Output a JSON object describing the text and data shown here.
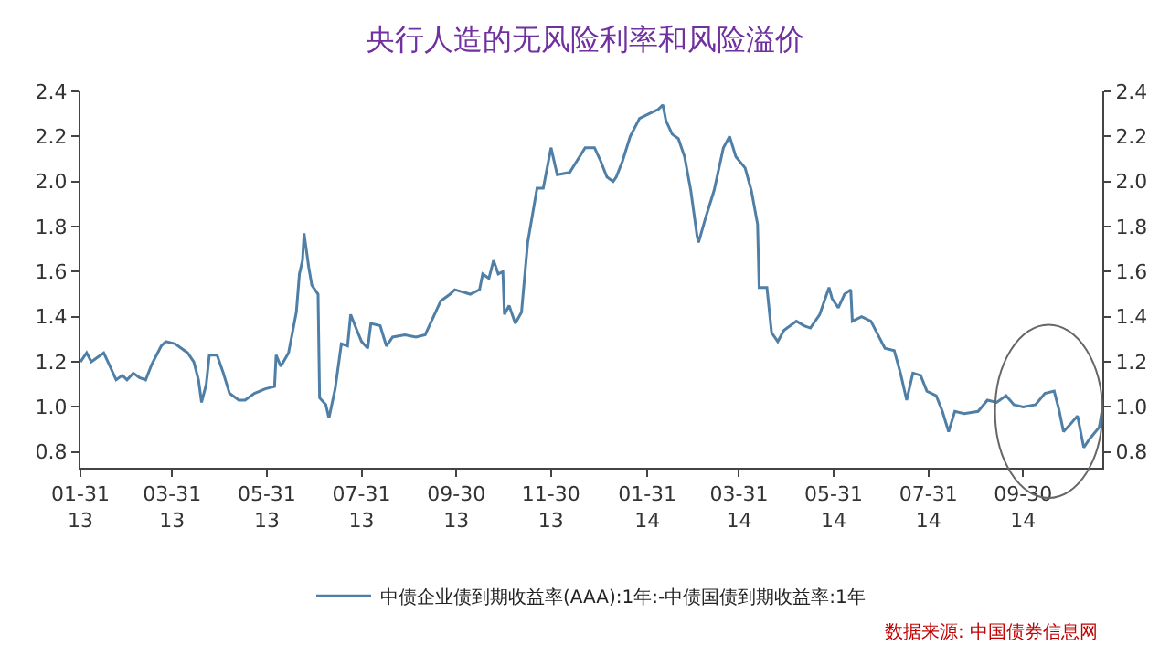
{
  "chart_data": {
    "type": "line",
    "title": "央行人造的无风险利率和风险溢价",
    "x": [
      "2013-01-31",
      "2013-02-04",
      "2013-02-07",
      "2013-02-15",
      "2013-02-19",
      "2013-02-23",
      "2013-02-27",
      "2013-03-02",
      "2013-03-06",
      "2013-03-10",
      "2013-03-14",
      "2013-03-18",
      "2013-03-24",
      "2013-03-27",
      "2013-04-02",
      "2013-04-10",
      "2013-04-14",
      "2013-04-17",
      "2013-04-19",
      "2013-04-22",
      "2013-04-24",
      "2013-04-29",
      "2013-05-03",
      "2013-05-07",
      "2013-05-13",
      "2013-05-17",
      "2013-05-23",
      "2013-05-30",
      "2013-06-05",
      "2013-06-06",
      "2013-06-09",
      "2013-06-14",
      "2013-06-19",
      "2013-06-21",
      "2013-06-23",
      "2013-06-24",
      "2013-06-27",
      "2013-06-29",
      "2013-07-03",
      "2013-07-04",
      "2013-07-08",
      "2013-07-10",
      "2013-07-14",
      "2013-07-18",
      "2013-07-22",
      "2013-07-24",
      "2013-07-28",
      "2013-07-31",
      "2013-08-04",
      "2013-08-06",
      "2013-08-12",
      "2013-08-16",
      "2013-08-20",
      "2013-08-28",
      "2013-09-04",
      "2013-09-10",
      "2013-09-16",
      "2013-09-20",
      "2013-09-26",
      "2013-09-29",
      "2013-10-09",
      "2013-10-15",
      "2013-10-17",
      "2013-10-21",
      "2013-10-24",
      "2013-10-27",
      "2013-10-30",
      "2013-10-31",
      "2013-11-03",
      "2013-11-07",
      "2013-11-11",
      "2013-11-15",
      "2013-11-21",
      "2013-11-25",
      "2013-11-30",
      "2013-12-04",
      "2013-12-12",
      "2013-12-22",
      "2013-12-28",
      "2014-01-01",
      "2014-01-05",
      "2014-01-09",
      "2014-01-11",
      "2014-01-15",
      "2014-01-20",
      "2014-01-26",
      "2014-02-01",
      "2014-02-07",
      "2014-02-10",
      "2014-02-12",
      "2014-02-16",
      "2014-02-20",
      "2014-02-24",
      "2014-02-28",
      "2014-03-04",
      "2014-03-05",
      "2014-03-10",
      "2014-03-15",
      "2014-03-21",
      "2014-03-25",
      "2014-03-29",
      "2014-04-04",
      "2014-04-08",
      "2014-04-12",
      "2014-04-13",
      "2014-04-18",
      "2014-04-21",
      "2014-04-25",
      "2014-04-29",
      "2014-05-07",
      "2014-05-12",
      "2014-05-16",
      "2014-05-22",
      "2014-05-28",
      "2014-05-30",
      "2014-06-03",
      "2014-06-07",
      "2014-06-11",
      "2014-06-12",
      "2014-06-18",
      "2014-06-24",
      "2014-06-30",
      "2014-07-03",
      "2014-07-09",
      "2014-07-13",
      "2014-07-17",
      "2014-07-21",
      "2014-07-26",
      "2014-07-30",
      "2014-08-05",
      "2014-08-09",
      "2014-08-13",
      "2014-08-17",
      "2014-08-23",
      "2014-09-01",
      "2014-09-07",
      "2014-09-13",
      "2014-09-19",
      "2014-09-24",
      "2014-09-30",
      "2014-10-08",
      "2014-10-14",
      "2014-10-20",
      "2014-10-23",
      "2014-10-26",
      "2014-10-30",
      "2014-11-04",
      "2014-11-08",
      "2014-11-12",
      "2014-11-18",
      "2014-11-20"
    ],
    "series": [
      {
        "name": "中债企业债到期收益率(AAA):1年:-中债国债到期收益率:1年",
        "color": "#4f7fa6",
        "values": [
          1.2,
          1.24,
          1.2,
          1.24,
          1.18,
          1.12,
          1.14,
          1.12,
          1.15,
          1.13,
          1.12,
          1.19,
          1.27,
          1.29,
          1.28,
          1.24,
          1.2,
          1.12,
          1.02,
          1.1,
          1.23,
          1.23,
          1.15,
          1.06,
          1.03,
          1.03,
          1.06,
          1.08,
          1.09,
          1.23,
          1.18,
          1.24,
          1.42,
          1.59,
          1.65,
          1.77,
          1.62,
          1.54,
          1.5,
          1.04,
          1.01,
          0.95,
          1.08,
          1.28,
          1.27,
          1.41,
          1.34,
          1.29,
          1.26,
          1.37,
          1.36,
          1.27,
          1.31,
          1.32,
          1.31,
          1.32,
          1.41,
          1.47,
          1.5,
          1.52,
          1.5,
          1.52,
          1.59,
          1.57,
          1.65,
          1.59,
          1.6,
          1.41,
          1.45,
          1.37,
          1.42,
          1.73,
          1.97,
          1.97,
          2.15,
          2.03,
          2.04,
          2.15,
          2.15,
          2.09,
          2.02,
          2.0,
          2.02,
          2.09,
          2.2,
          2.28,
          2.3,
          2.32,
          2.34,
          2.27,
          2.21,
          2.19,
          2.11,
          1.96,
          1.76,
          1.73,
          1.85,
          1.96,
          2.15,
          2.2,
          2.11,
          2.06,
          1.96,
          1.81,
          1.53,
          1.53,
          1.33,
          1.29,
          1.34,
          1.38,
          1.36,
          1.35,
          1.41,
          1.53,
          1.48,
          1.44,
          1.5,
          1.52,
          1.38,
          1.4,
          1.38,
          1.3,
          1.26,
          1.25,
          1.15,
          1.03,
          1.15,
          1.14,
          1.07,
          1.05,
          0.98,
          0.89,
          0.98,
          0.97,
          0.98,
          1.03,
          1.02,
          1.05,
          1.01,
          1.0,
          1.01,
          1.06,
          1.07,
          0.99,
          0.89,
          0.92,
          0.96,
          0.82,
          0.86,
          0.91,
          0.99
        ]
      }
    ],
    "xlim": [
      "2013-01-31",
      "2014-11-20"
    ],
    "xticks": [
      {
        "value": "2013-01-31",
        "label": "01-31\n13"
      },
      {
        "value": "2013-03-31",
        "label": "03-31\n13"
      },
      {
        "value": "2013-05-31",
        "label": "05-31\n13"
      },
      {
        "value": "2013-07-31",
        "label": "07-31\n13"
      },
      {
        "value": "2013-09-30",
        "label": "09-30\n13"
      },
      {
        "value": "2013-11-30",
        "label": "11-30\n13"
      },
      {
        "value": "2014-01-31",
        "label": "01-31\n14"
      },
      {
        "value": "2014-03-31",
        "label": "03-31\n14"
      },
      {
        "value": "2014-05-31",
        "label": "05-31\n14"
      },
      {
        "value": "2014-07-31",
        "label": "07-31\n14"
      },
      {
        "value": "2014-09-30",
        "label": "09-30\n14"
      }
    ],
    "ylim": [
      0.73,
      2.4
    ],
    "yticks": [
      {
        "value": 0.8,
        "label": "0.8"
      },
      {
        "value": 1.0,
        "label": "1.0"
      },
      {
        "value": 1.2,
        "label": "1.2"
      },
      {
        "value": 1.4,
        "label": "1.4"
      },
      {
        "value": 1.6,
        "label": "1.6"
      },
      {
        "value": 1.8,
        "label": "1.8"
      },
      {
        "value": 2.0,
        "label": "2.0"
      },
      {
        "value": 2.2,
        "label": "2.2"
      },
      {
        "value": 2.4,
        "label": "2.4"
      }
    ],
    "y2lim": [
      0.73,
      2.4
    ],
    "y2ticks": [
      {
        "value": 0.8,
        "label": "0.8"
      },
      {
        "value": 1.0,
        "label": "1.0"
      },
      {
        "value": 1.2,
        "label": "1.2"
      },
      {
        "value": 1.4,
        "label": "1.4"
      },
      {
        "value": 1.6,
        "label": "1.6"
      },
      {
        "value": 1.8,
        "label": "1.8"
      },
      {
        "value": 2.0,
        "label": "2.0"
      },
      {
        "value": 2.2,
        "label": "2.2"
      },
      {
        "value": 2.4,
        "label": "2.4"
      }
    ],
    "annotations": [
      "数据来源: 中国债券信息网"
    ],
    "legend": "bottom",
    "marker": "none",
    "line_style": "solid"
  }
}
